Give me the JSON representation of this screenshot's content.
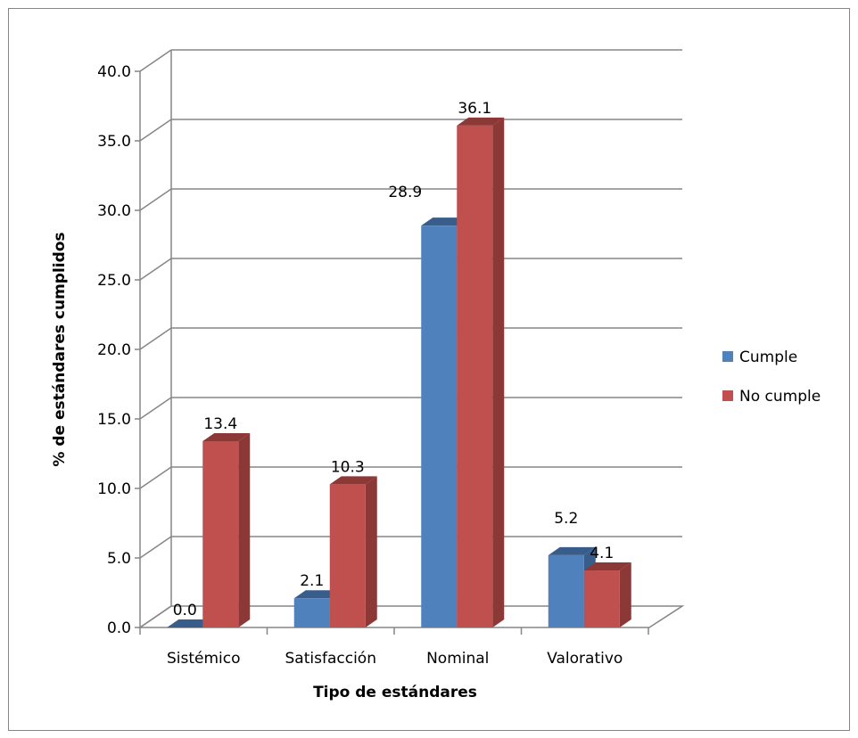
{
  "chart_data": {
    "type": "bar",
    "title": "",
    "xlabel": "Tipo de estándares",
    "ylabel": "% de estándares cumplidos",
    "ylim": [
      0,
      40
    ],
    "y_ticks": [
      "0.0",
      "5.0",
      "10.0",
      "15.0",
      "20.0",
      "25.0",
      "30.0",
      "35.0",
      "40.0"
    ],
    "categories": [
      "Sistémico",
      "Satisfacción",
      "Nominal",
      "Valorativo"
    ],
    "series": [
      {
        "name": "Cumple",
        "color": "#4F81BD",
        "side_color": "#385D8A",
        "values": [
          0.0,
          2.1,
          28.9,
          5.2
        ],
        "labels": [
          "0.0",
          "2.1",
          "28.9",
          "5.2"
        ]
      },
      {
        "name": "No cumple",
        "color": "#C0504D",
        "side_color": "#8C3836",
        "values": [
          13.4,
          10.3,
          36.1,
          4.1
        ],
        "labels": [
          "13.4",
          "10.3",
          "36.1",
          "4.1"
        ]
      }
    ],
    "grid": true,
    "legend_position": "right",
    "style": "3d-clustered-column"
  }
}
